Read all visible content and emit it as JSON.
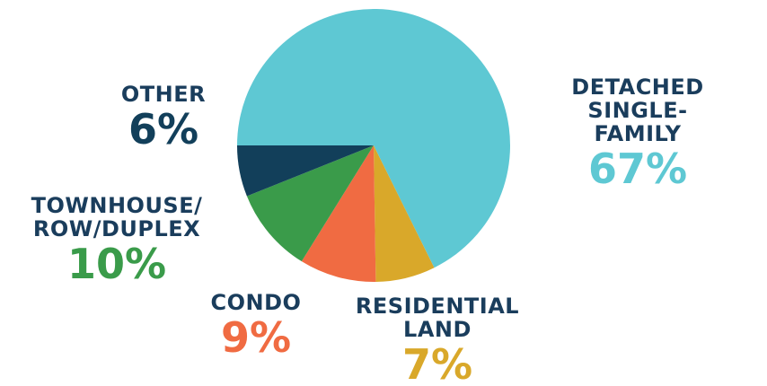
{
  "chart_data": {
    "type": "pie",
    "categories": [
      "DETACHED\nSINGLE-FAMILY",
      "RESIDENTIAL\nLAND",
      "CONDO",
      "TOWNHOUSE/\nROW/DUPLEX",
      "OTHER"
    ],
    "values": [
      67,
      7,
      9,
      10,
      6
    ],
    "value_labels": [
      "67%",
      "7%",
      "9%",
      "10%",
      "6%"
    ],
    "colors": [
      "#5ec8d3",
      "#d9a82a",
      "#f06b42",
      "#3a9b4a",
      "#123f5a"
    ]
  }
}
